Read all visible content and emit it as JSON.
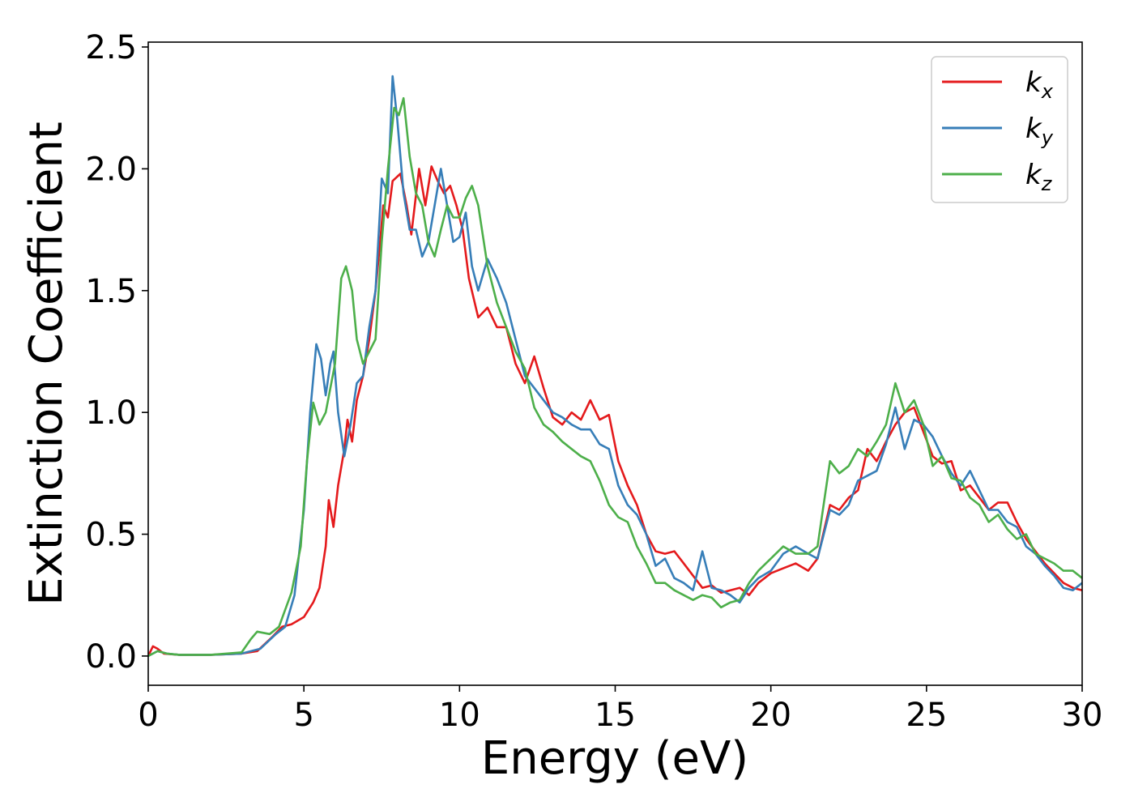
{
  "chart_data": {
    "type": "line",
    "title": "",
    "xlabel": "Energy (eV)",
    "ylabel": "Extinction Coefficient",
    "xlim": [
      0,
      30
    ],
    "ylim": [
      -0.12,
      2.52
    ],
    "x_ticks": [
      0,
      5,
      10,
      15,
      20,
      25,
      30
    ],
    "x_tick_labels": [
      "0",
      "5",
      "10",
      "15",
      "20",
      "25",
      "30"
    ],
    "y_ticks": [
      0.0,
      0.5,
      1.0,
      1.5,
      2.0,
      2.5
    ],
    "y_tick_labels": [
      "0.0",
      "0.5",
      "1.0",
      "1.5",
      "2.0",
      "2.5"
    ],
    "grid": false,
    "legend_position": "top-right",
    "series": [
      {
        "name": "k_x",
        "legend_base": "k",
        "legend_sub": "x",
        "color": "#e41a1c",
        "points": [
          [
            0,
            0
          ],
          [
            0.15,
            0.04
          ],
          [
            0.3,
            0.03
          ],
          [
            0.5,
            0.01
          ],
          [
            1,
            0.005
          ],
          [
            2,
            0.005
          ],
          [
            3,
            0.01
          ],
          [
            3.5,
            0.02
          ],
          [
            4,
            0.08
          ],
          [
            4.3,
            0.12
          ],
          [
            4.6,
            0.13
          ],
          [
            5,
            0.16
          ],
          [
            5.3,
            0.22
          ],
          [
            5.5,
            0.28
          ],
          [
            5.7,
            0.45
          ],
          [
            5.8,
            0.64
          ],
          [
            5.95,
            0.53
          ],
          [
            6.1,
            0.7
          ],
          [
            6.3,
            0.85
          ],
          [
            6.4,
            0.97
          ],
          [
            6.55,
            0.88
          ],
          [
            6.7,
            1.05
          ],
          [
            6.9,
            1.15
          ],
          [
            7.1,
            1.3
          ],
          [
            7.3,
            1.5
          ],
          [
            7.45,
            1.7
          ],
          [
            7.55,
            1.85
          ],
          [
            7.7,
            1.8
          ],
          [
            7.85,
            1.95
          ],
          [
            8.1,
            1.98
          ],
          [
            8.3,
            1.85
          ],
          [
            8.45,
            1.73
          ],
          [
            8.7,
            2.0
          ],
          [
            8.9,
            1.85
          ],
          [
            9.1,
            2.01
          ],
          [
            9.3,
            1.95
          ],
          [
            9.5,
            1.9
          ],
          [
            9.7,
            1.93
          ],
          [
            9.9,
            1.85
          ],
          [
            10.1,
            1.75
          ],
          [
            10.3,
            1.55
          ],
          [
            10.6,
            1.39
          ],
          [
            10.9,
            1.43
          ],
          [
            11.2,
            1.35
          ],
          [
            11.5,
            1.35
          ],
          [
            11.8,
            1.2
          ],
          [
            12.1,
            1.12
          ],
          [
            12.4,
            1.23
          ],
          [
            12.7,
            1.1
          ],
          [
            13.0,
            0.98
          ],
          [
            13.3,
            0.95
          ],
          [
            13.6,
            1.0
          ],
          [
            13.9,
            0.97
          ],
          [
            14.2,
            1.05
          ],
          [
            14.5,
            0.97
          ],
          [
            14.8,
            0.99
          ],
          [
            15.1,
            0.8
          ],
          [
            15.4,
            0.7
          ],
          [
            15.7,
            0.62
          ],
          [
            16.0,
            0.5
          ],
          [
            16.3,
            0.43
          ],
          [
            16.6,
            0.42
          ],
          [
            16.9,
            0.43
          ],
          [
            17.2,
            0.38
          ],
          [
            17.5,
            0.33
          ],
          [
            17.8,
            0.28
          ],
          [
            18.1,
            0.29
          ],
          [
            18.4,
            0.26
          ],
          [
            18.7,
            0.27
          ],
          [
            19.0,
            0.28
          ],
          [
            19.3,
            0.25
          ],
          [
            19.6,
            0.3
          ],
          [
            20.0,
            0.34
          ],
          [
            20.4,
            0.36
          ],
          [
            20.8,
            0.38
          ],
          [
            21.2,
            0.35
          ],
          [
            21.5,
            0.4
          ],
          [
            21.9,
            0.62
          ],
          [
            22.2,
            0.6
          ],
          [
            22.5,
            0.65
          ],
          [
            22.8,
            0.68
          ],
          [
            23.1,
            0.85
          ],
          [
            23.4,
            0.8
          ],
          [
            23.7,
            0.88
          ],
          [
            24.0,
            0.95
          ],
          [
            24.3,
            1.0
          ],
          [
            24.6,
            1.02
          ],
          [
            24.9,
            0.92
          ],
          [
            25.2,
            0.82
          ],
          [
            25.5,
            0.79
          ],
          [
            25.8,
            0.8
          ],
          [
            26.1,
            0.68
          ],
          [
            26.4,
            0.7
          ],
          [
            26.7,
            0.65
          ],
          [
            27.0,
            0.6
          ],
          [
            27.3,
            0.63
          ],
          [
            27.6,
            0.63
          ],
          [
            27.9,
            0.55
          ],
          [
            28.2,
            0.48
          ],
          [
            28.5,
            0.43
          ],
          [
            28.8,
            0.38
          ],
          [
            29.1,
            0.34
          ],
          [
            29.4,
            0.3
          ],
          [
            29.7,
            0.28
          ],
          [
            30.0,
            0.27
          ]
        ]
      },
      {
        "name": "k_y",
        "legend_base": "k",
        "legend_sub": "y",
        "color": "#377eb8",
        "points": [
          [
            0,
            0
          ],
          [
            0.3,
            0.02
          ],
          [
            0.6,
            0.01
          ],
          [
            1,
            0.005
          ],
          [
            2,
            0.005
          ],
          [
            3,
            0.01
          ],
          [
            3.6,
            0.03
          ],
          [
            4.1,
            0.09
          ],
          [
            4.4,
            0.12
          ],
          [
            4.7,
            0.25
          ],
          [
            5.0,
            0.6
          ],
          [
            5.2,
            1.0
          ],
          [
            5.4,
            1.28
          ],
          [
            5.55,
            1.22
          ],
          [
            5.7,
            1.07
          ],
          [
            5.85,
            1.2
          ],
          [
            5.95,
            1.25
          ],
          [
            6.1,
            1.0
          ],
          [
            6.3,
            0.82
          ],
          [
            6.5,
            0.95
          ],
          [
            6.7,
            1.12
          ],
          [
            6.9,
            1.15
          ],
          [
            7.1,
            1.35
          ],
          [
            7.3,
            1.5
          ],
          [
            7.5,
            1.96
          ],
          [
            7.7,
            1.9
          ],
          [
            7.85,
            2.38
          ],
          [
            8.0,
            2.2
          ],
          [
            8.2,
            1.9
          ],
          [
            8.4,
            1.75
          ],
          [
            8.6,
            1.75
          ],
          [
            8.8,
            1.64
          ],
          [
            9.0,
            1.7
          ],
          [
            9.2,
            1.85
          ],
          [
            9.4,
            2.0
          ],
          [
            9.6,
            1.85
          ],
          [
            9.8,
            1.7
          ],
          [
            10.0,
            1.72
          ],
          [
            10.2,
            1.82
          ],
          [
            10.4,
            1.6
          ],
          [
            10.6,
            1.5
          ],
          [
            10.9,
            1.63
          ],
          [
            11.2,
            1.55
          ],
          [
            11.5,
            1.45
          ],
          [
            11.8,
            1.3
          ],
          [
            12.1,
            1.15
          ],
          [
            12.4,
            1.1
          ],
          [
            12.7,
            1.05
          ],
          [
            13.0,
            1.0
          ],
          [
            13.3,
            0.98
          ],
          [
            13.6,
            0.95
          ],
          [
            13.9,
            0.93
          ],
          [
            14.2,
            0.93
          ],
          [
            14.5,
            0.87
          ],
          [
            14.8,
            0.85
          ],
          [
            15.1,
            0.7
          ],
          [
            15.4,
            0.62
          ],
          [
            15.7,
            0.58
          ],
          [
            16.0,
            0.5
          ],
          [
            16.3,
            0.37
          ],
          [
            16.6,
            0.4
          ],
          [
            16.9,
            0.32
          ],
          [
            17.2,
            0.3
          ],
          [
            17.5,
            0.27
          ],
          [
            17.8,
            0.43
          ],
          [
            18.1,
            0.28
          ],
          [
            18.4,
            0.27
          ],
          [
            18.7,
            0.25
          ],
          [
            19.0,
            0.22
          ],
          [
            19.3,
            0.28
          ],
          [
            19.6,
            0.32
          ],
          [
            20.0,
            0.35
          ],
          [
            20.4,
            0.42
          ],
          [
            20.8,
            0.45
          ],
          [
            21.2,
            0.42
          ],
          [
            21.5,
            0.4
          ],
          [
            21.9,
            0.6
          ],
          [
            22.2,
            0.58
          ],
          [
            22.5,
            0.62
          ],
          [
            22.8,
            0.72
          ],
          [
            23.1,
            0.74
          ],
          [
            23.4,
            0.76
          ],
          [
            23.7,
            0.87
          ],
          [
            24.0,
            1.02
          ],
          [
            24.3,
            0.85
          ],
          [
            24.6,
            0.97
          ],
          [
            24.9,
            0.95
          ],
          [
            25.2,
            0.9
          ],
          [
            25.5,
            0.82
          ],
          [
            25.8,
            0.75
          ],
          [
            26.1,
            0.7
          ],
          [
            26.4,
            0.76
          ],
          [
            26.7,
            0.68
          ],
          [
            27.0,
            0.6
          ],
          [
            27.3,
            0.6
          ],
          [
            27.6,
            0.55
          ],
          [
            27.9,
            0.53
          ],
          [
            28.2,
            0.45
          ],
          [
            28.5,
            0.42
          ],
          [
            28.8,
            0.37
          ],
          [
            29.1,
            0.33
          ],
          [
            29.4,
            0.28
          ],
          [
            29.7,
            0.27
          ],
          [
            30.0,
            0.3
          ]
        ]
      },
      {
        "name": "k_z",
        "legend_base": "k",
        "legend_sub": "z",
        "color": "#4daf4a",
        "points": [
          [
            0,
            0
          ],
          [
            0.3,
            0.02
          ],
          [
            0.6,
            0.01
          ],
          [
            1,
            0.005
          ],
          [
            2,
            0.005
          ],
          [
            3,
            0.015
          ],
          [
            3.3,
            0.07
          ],
          [
            3.5,
            0.1
          ],
          [
            3.9,
            0.09
          ],
          [
            4.2,
            0.12
          ],
          [
            4.6,
            0.26
          ],
          [
            4.9,
            0.45
          ],
          [
            5.1,
            0.8
          ],
          [
            5.3,
            1.04
          ],
          [
            5.5,
            0.95
          ],
          [
            5.7,
            1.0
          ],
          [
            6.0,
            1.2
          ],
          [
            6.2,
            1.55
          ],
          [
            6.35,
            1.6
          ],
          [
            6.55,
            1.5
          ],
          [
            6.7,
            1.3
          ],
          [
            6.9,
            1.2
          ],
          [
            7.1,
            1.25
          ],
          [
            7.3,
            1.3
          ],
          [
            7.5,
            1.7
          ],
          [
            7.7,
            2.0
          ],
          [
            7.9,
            2.25
          ],
          [
            8.05,
            2.22
          ],
          [
            8.2,
            2.29
          ],
          [
            8.4,
            2.05
          ],
          [
            8.6,
            1.9
          ],
          [
            8.8,
            1.85
          ],
          [
            9.0,
            1.7
          ],
          [
            9.2,
            1.64
          ],
          [
            9.4,
            1.75
          ],
          [
            9.6,
            1.85
          ],
          [
            9.8,
            1.8
          ],
          [
            10.0,
            1.8
          ],
          [
            10.2,
            1.88
          ],
          [
            10.4,
            1.93
          ],
          [
            10.6,
            1.85
          ],
          [
            10.9,
            1.6
          ],
          [
            11.2,
            1.45
          ],
          [
            11.5,
            1.35
          ],
          [
            11.8,
            1.25
          ],
          [
            12.1,
            1.18
          ],
          [
            12.4,
            1.02
          ],
          [
            12.7,
            0.95
          ],
          [
            13.0,
            0.92
          ],
          [
            13.3,
            0.88
          ],
          [
            13.6,
            0.85
          ],
          [
            13.9,
            0.82
          ],
          [
            14.2,
            0.8
          ],
          [
            14.5,
            0.72
          ],
          [
            14.8,
            0.62
          ],
          [
            15.1,
            0.57
          ],
          [
            15.4,
            0.55
          ],
          [
            15.7,
            0.45
          ],
          [
            16.0,
            0.38
          ],
          [
            16.3,
            0.3
          ],
          [
            16.6,
            0.3
          ],
          [
            16.9,
            0.27
          ],
          [
            17.2,
            0.25
          ],
          [
            17.5,
            0.23
          ],
          [
            17.8,
            0.25
          ],
          [
            18.1,
            0.24
          ],
          [
            18.4,
            0.2
          ],
          [
            18.7,
            0.22
          ],
          [
            19.0,
            0.23
          ],
          [
            19.3,
            0.3
          ],
          [
            19.6,
            0.35
          ],
          [
            20.0,
            0.4
          ],
          [
            20.4,
            0.45
          ],
          [
            20.8,
            0.42
          ],
          [
            21.2,
            0.42
          ],
          [
            21.5,
            0.45
          ],
          [
            21.9,
            0.8
          ],
          [
            22.2,
            0.75
          ],
          [
            22.5,
            0.78
          ],
          [
            22.8,
            0.85
          ],
          [
            23.1,
            0.82
          ],
          [
            23.4,
            0.88
          ],
          [
            23.7,
            0.95
          ],
          [
            24.0,
            1.12
          ],
          [
            24.3,
            1.0
          ],
          [
            24.6,
            1.05
          ],
          [
            24.9,
            0.95
          ],
          [
            25.2,
            0.78
          ],
          [
            25.5,
            0.82
          ],
          [
            25.8,
            0.73
          ],
          [
            26.1,
            0.72
          ],
          [
            26.4,
            0.65
          ],
          [
            26.7,
            0.62
          ],
          [
            27.0,
            0.55
          ],
          [
            27.3,
            0.58
          ],
          [
            27.6,
            0.52
          ],
          [
            27.9,
            0.48
          ],
          [
            28.2,
            0.5
          ],
          [
            28.5,
            0.42
          ],
          [
            28.8,
            0.4
          ],
          [
            29.1,
            0.38
          ],
          [
            29.4,
            0.35
          ],
          [
            29.7,
            0.35
          ],
          [
            30.0,
            0.32
          ]
        ]
      }
    ]
  }
}
